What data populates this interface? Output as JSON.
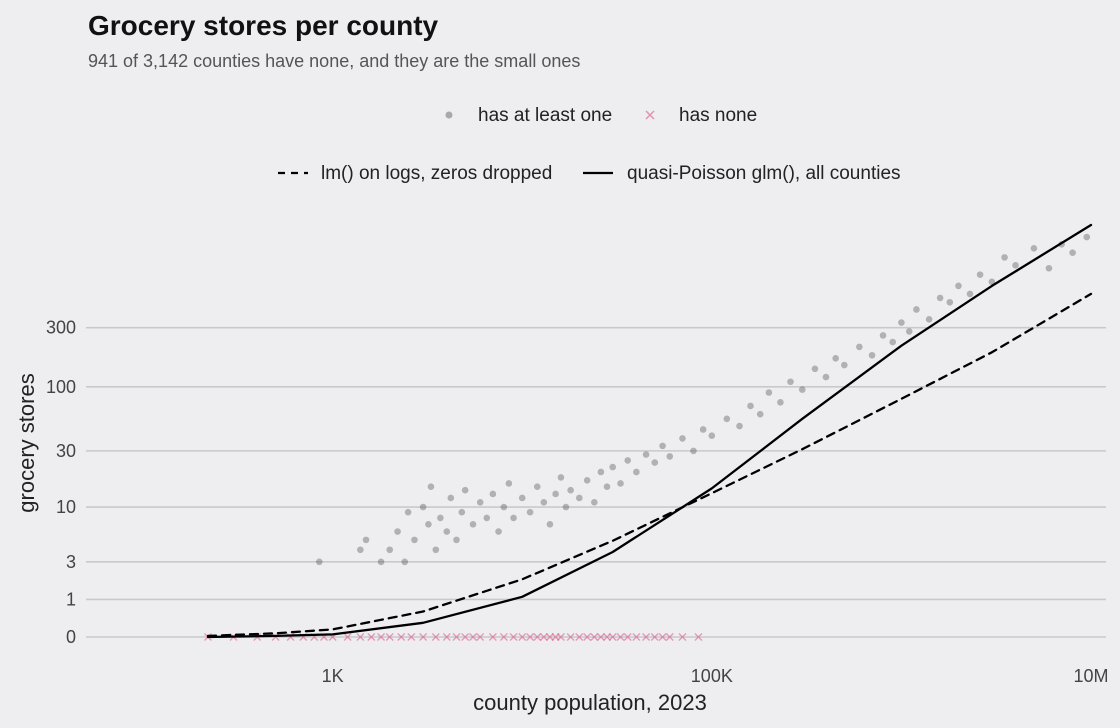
{
  "chart_data": {
    "type": "scatter",
    "title": "Grocery stores per county",
    "subtitle": "941 of 3,142 counties have none, and they are the small ones",
    "xlabel": "county population, 2023",
    "ylabel": "grocery stores",
    "x_scale": "log10",
    "y_scale": "log(1 + y)",
    "xlim": [
      50,
      12000000
    ],
    "ylim": [
      0,
      2000
    ],
    "x_ticks": [
      {
        "value": 1000,
        "label": "1K"
      },
      {
        "value": 100000,
        "label": "100K"
      },
      {
        "value": 10000000,
        "label": "10M"
      }
    ],
    "y_ticks": [
      {
        "value": 0,
        "label": "0"
      },
      {
        "value": 1,
        "label": "1"
      },
      {
        "value": 3,
        "label": "3"
      },
      {
        "value": 10,
        "label": "10"
      },
      {
        "value": 30,
        "label": "30"
      },
      {
        "value": 100,
        "label": "100"
      },
      {
        "value": 300,
        "label": "300"
      }
    ],
    "grid": "horizontal",
    "legend_position": "top",
    "colors": {
      "has_at_least_one": "#555555",
      "has_none": "#d6487e",
      "fit_lines": "#000000"
    },
    "series": [
      {
        "name": "has at least one",
        "marker": "circle",
        "color": "#555555",
        "points": [
          [
            850,
            3
          ],
          [
            1400,
            4
          ],
          [
            1500,
            5
          ],
          [
            1800,
            3
          ],
          [
            2000,
            4
          ],
          [
            2200,
            6
          ],
          [
            2400,
            3
          ],
          [
            2500,
            9
          ],
          [
            2700,
            5
          ],
          [
            3000,
            10
          ],
          [
            3200,
            7
          ],
          [
            3300,
            15
          ],
          [
            3500,
            4
          ],
          [
            3700,
            8
          ],
          [
            4000,
            6
          ],
          [
            4200,
            12
          ],
          [
            4500,
            5
          ],
          [
            4800,
            9
          ],
          [
            5000,
            14
          ],
          [
            5500,
            7
          ],
          [
            6000,
            11
          ],
          [
            6500,
            8
          ],
          [
            7000,
            13
          ],
          [
            7500,
            6
          ],
          [
            8000,
            10
          ],
          [
            8500,
            16
          ],
          [
            9000,
            8
          ],
          [
            10000,
            12
          ],
          [
            11000,
            9
          ],
          [
            12000,
            15
          ],
          [
            13000,
            11
          ],
          [
            14000,
            7
          ],
          [
            15000,
            13
          ],
          [
            16000,
            18
          ],
          [
            17000,
            10
          ],
          [
            18000,
            14
          ],
          [
            20000,
            12
          ],
          [
            22000,
            17
          ],
          [
            24000,
            11
          ],
          [
            26000,
            20
          ],
          [
            28000,
            15
          ],
          [
            30000,
            22
          ],
          [
            33000,
            16
          ],
          [
            36000,
            25
          ],
          [
            40000,
            20
          ],
          [
            45000,
            28
          ],
          [
            50000,
            24
          ],
          [
            55000,
            33
          ],
          [
            60000,
            27
          ],
          [
            70000,
            38
          ],
          [
            80000,
            30
          ],
          [
            90000,
            45
          ],
          [
            100000,
            40
          ],
          [
            120000,
            55
          ],
          [
            140000,
            48
          ],
          [
            160000,
            70
          ],
          [
            180000,
            60
          ],
          [
            200000,
            90
          ],
          [
            230000,
            75
          ],
          [
            260000,
            110
          ],
          [
            300000,
            95
          ],
          [
            350000,
            140
          ],
          [
            400000,
            120
          ],
          [
            450000,
            170
          ],
          [
            500000,
            150
          ],
          [
            600000,
            210
          ],
          [
            700000,
            180
          ],
          [
            800000,
            260
          ],
          [
            900000,
            230
          ],
          [
            1000000,
            330
          ],
          [
            1100000,
            280
          ],
          [
            1200000,
            420
          ],
          [
            1400000,
            350
          ],
          [
            1600000,
            520
          ],
          [
            1800000,
            480
          ],
          [
            2000000,
            650
          ],
          [
            2300000,
            560
          ],
          [
            2600000,
            800
          ],
          [
            3000000,
            700
          ],
          [
            3500000,
            1100
          ],
          [
            4000000,
            950
          ],
          [
            5000000,
            1300
          ],
          [
            6000000,
            900
          ],
          [
            7000000,
            1400
          ],
          [
            8000000,
            1200
          ],
          [
            9500000,
            1600
          ]
        ]
      },
      {
        "name": "has none",
        "marker": "x",
        "color": "#d6487e",
        "points": [
          [
            220,
            0
          ],
          [
            300,
            0
          ],
          [
            400,
            0
          ],
          [
            500,
            0
          ],
          [
            600,
            0
          ],
          [
            700,
            0
          ],
          [
            800,
            0
          ],
          [
            900,
            0
          ],
          [
            1000,
            0
          ],
          [
            1200,
            0
          ],
          [
            1400,
            0
          ],
          [
            1600,
            0
          ],
          [
            1800,
            0
          ],
          [
            2000,
            0
          ],
          [
            2300,
            0
          ],
          [
            2600,
            0
          ],
          [
            3000,
            0
          ],
          [
            3500,
            0
          ],
          [
            4000,
            0
          ],
          [
            4500,
            0
          ],
          [
            5000,
            0
          ],
          [
            5500,
            0
          ],
          [
            6000,
            0
          ],
          [
            7000,
            0
          ],
          [
            8000,
            0
          ],
          [
            9000,
            0
          ],
          [
            10000,
            0
          ],
          [
            11000,
            0
          ],
          [
            12000,
            0
          ],
          [
            13000,
            0
          ],
          [
            14000,
            0
          ],
          [
            15000,
            0
          ],
          [
            16000,
            0
          ],
          [
            18000,
            0
          ],
          [
            20000,
            0
          ],
          [
            22000,
            0
          ],
          [
            24000,
            0
          ],
          [
            26000,
            0
          ],
          [
            28000,
            0
          ],
          [
            30000,
            0
          ],
          [
            33000,
            0
          ],
          [
            36000,
            0
          ],
          [
            40000,
            0
          ],
          [
            45000,
            0
          ],
          [
            50000,
            0
          ],
          [
            55000,
            0
          ],
          [
            60000,
            0
          ],
          [
            70000,
            0
          ],
          [
            85000,
            0
          ]
        ]
      }
    ],
    "fit_lines": [
      {
        "name": "lm() on logs, zeros dropped",
        "style": "dashed",
        "x": [
          220,
          500,
          1000,
          3000,
          10000,
          30000,
          100000,
          300000,
          1000000,
          3000000,
          10000000
        ],
        "y": [
          0.02,
          0.07,
          0.15,
          0.6,
          1.9,
          4.9,
          13.2,
          31,
          80,
          190,
          560
        ]
      },
      {
        "name": "quasi-Poisson glm(), all counties",
        "style": "solid",
        "x": [
          220,
          500,
          1000,
          3000,
          10000,
          30000,
          100000,
          300000,
          1000000,
          3000000,
          10000000
        ],
        "y": [
          0.0,
          0.02,
          0.05,
          0.3,
          1.1,
          3.8,
          14.5,
          55,
          215,
          650,
          2000
        ]
      }
    ]
  }
}
